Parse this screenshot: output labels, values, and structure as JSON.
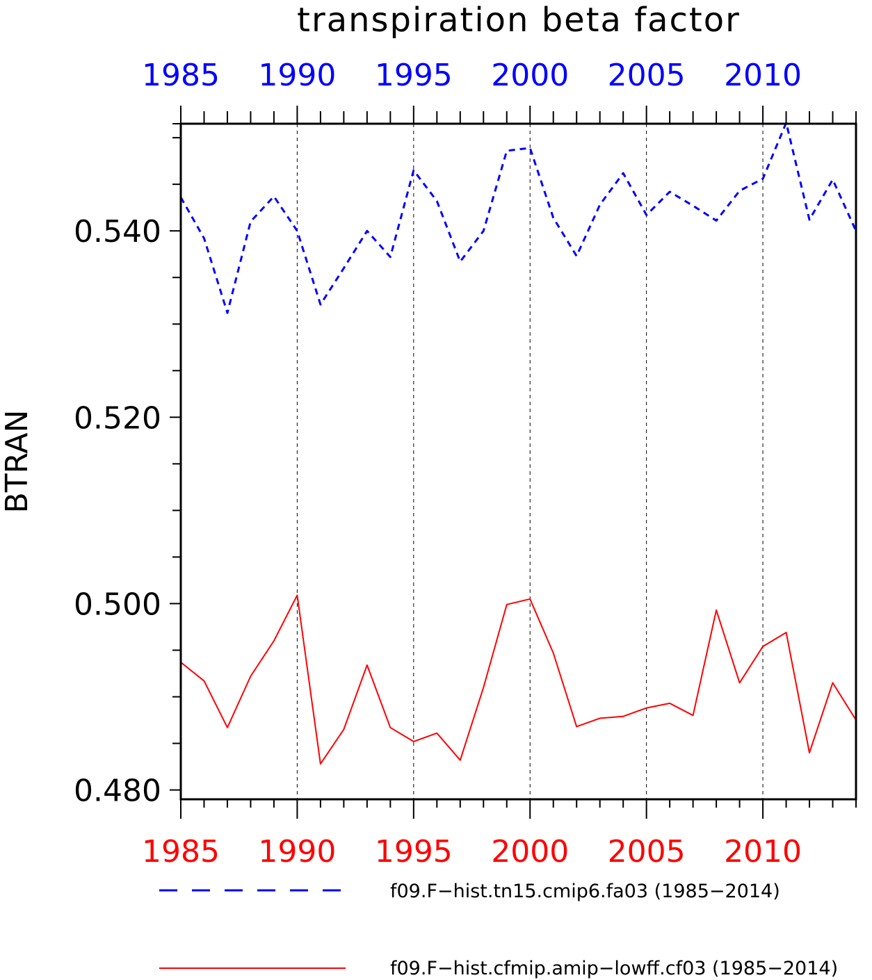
{
  "chart_data": {
    "type": "line",
    "title": "transpiration beta factor",
    "ylabel": "BTRAN",
    "xlabel": "",
    "xlim": [
      1985,
      2014
    ],
    "ylim": [
      0.479,
      0.5515
    ],
    "x_ticks": [
      1985,
      1990,
      1995,
      2000,
      2005,
      2010
    ],
    "x_tick_labels": [
      "1985",
      "1990",
      "1995",
      "2000",
      "2005",
      "2010"
    ],
    "y_ticks": [
      0.48,
      0.5,
      0.52,
      0.54
    ],
    "y_tick_labels": [
      "0.480",
      "0.500",
      "0.520",
      "0.540"
    ],
    "grid": "vertical dashed at major x ticks",
    "legend_position": "bottom",
    "x": [
      1985,
      1986,
      1987,
      1988,
      1989,
      1990,
      1991,
      1992,
      1993,
      1994,
      1995,
      1996,
      1997,
      1998,
      1999,
      2000,
      2001,
      2002,
      2003,
      2004,
      2005,
      2006,
      2007,
      2008,
      2009,
      2010,
      2011,
      2012,
      2013,
      2014
    ],
    "series": [
      {
        "name": "f09.F−hist.tn15.cmip6.fa03 (1985−2014)",
        "color": "#0000ff",
        "style": "dashed",
        "values": [
          0.5436,
          0.5392,
          0.5312,
          0.541,
          0.5437,
          0.54,
          0.5321,
          0.536,
          0.54,
          0.5372,
          0.5465,
          0.5432,
          0.5367,
          0.54,
          0.5486,
          0.5489,
          0.5414,
          0.5373,
          0.5428,
          0.5462,
          0.5417,
          0.5442,
          0.5427,
          0.5411,
          0.5443,
          0.5456,
          0.5516,
          0.5412,
          0.5455,
          0.54
        ]
      },
      {
        "name": "f09.F−hist.cfmip.amip−lowff.cf03 (1985−2014)",
        "color": "#ff0000",
        "style": "solid",
        "values": [
          0.4937,
          0.4917,
          0.4867,
          0.4922,
          0.496,
          0.5009,
          0.4828,
          0.4865,
          0.4934,
          0.4867,
          0.4852,
          0.4861,
          0.4832,
          0.491,
          0.4999,
          0.5005,
          0.4947,
          0.4868,
          0.4877,
          0.4879,
          0.4888,
          0.4893,
          0.488,
          0.4993,
          0.4915,
          0.4954,
          0.4969,
          0.484,
          0.4915,
          0.4875
        ]
      }
    ]
  },
  "colors": {
    "top_axis": "#0000ff",
    "bottom_axis": "#ff0000",
    "frame": "#000000"
  }
}
